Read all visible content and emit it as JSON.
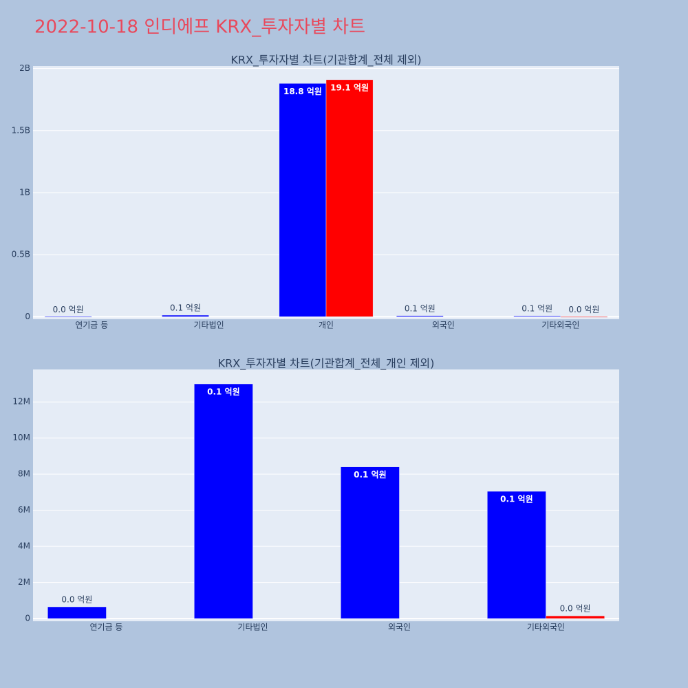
{
  "title": "2022-10-18 인디에프 KRX_투자자별 차트",
  "chart_data": [
    {
      "type": "bar",
      "title": "KRX_투자자별 차트(기관합계_전체 제외)",
      "categories": [
        "연기금 등",
        "기타법인",
        "개인",
        "외국인",
        "기타외국인"
      ],
      "series": [
        {
          "color": "#0000ff",
          "values": [
            650000,
            13000000,
            1880000000,
            8400000,
            7050000
          ],
          "value_labels": [
            "0.0 억원",
            "0.1 억원",
            "18.8 억원",
            "0.1 억원",
            "0.1 억원"
          ]
        },
        {
          "color": "#ff0000",
          "values": [
            null,
            null,
            1910000000,
            null,
            150000
          ],
          "value_labels": [
            null,
            null,
            "19.1 억원",
            null,
            "0.0 억원"
          ]
        }
      ],
      "ylim": [
        -20000000,
        2020000000
      ],
      "yticks": [
        0,
        {
          "value": 500000000,
          "label": "0.5B"
        },
        {
          "value": 1000000000,
          "label": "1B"
        },
        {
          "value": 1500000000,
          "label": "1.5B"
        },
        {
          "value": 2000000000,
          "label": "2B"
        }
      ],
      "grid": true
    },
    {
      "type": "bar",
      "title": "KRX_투자자별 차트(기관합계_전체_개인 제외)",
      "categories": [
        "연기금 등",
        "기타법인",
        "외국인",
        "기타외국인"
      ],
      "series": [
        {
          "color": "#0000ff",
          "values": [
            650000,
            13000000,
            8400000,
            7050000
          ],
          "value_labels": [
            "0.0 억원",
            "0.1 억원",
            "0.1 억원",
            "0.1 억원"
          ]
        },
        {
          "color": "#ff0000",
          "values": [
            null,
            null,
            null,
            150000
          ],
          "value_labels": [
            null,
            null,
            null,
            "0.0 억원"
          ]
        }
      ],
      "ylim": [
        -150000,
        13800000
      ],
      "yticks": [
        0,
        {
          "value": 2000000,
          "label": "2M"
        },
        {
          "value": 4000000,
          "label": "4M"
        },
        {
          "value": 6000000,
          "label": "6M"
        },
        {
          "value": 8000000,
          "label": "8M"
        },
        {
          "value": 10000000,
          "label": "10M"
        },
        {
          "value": 12000000,
          "label": "12M"
        }
      ],
      "grid": true
    }
  ]
}
